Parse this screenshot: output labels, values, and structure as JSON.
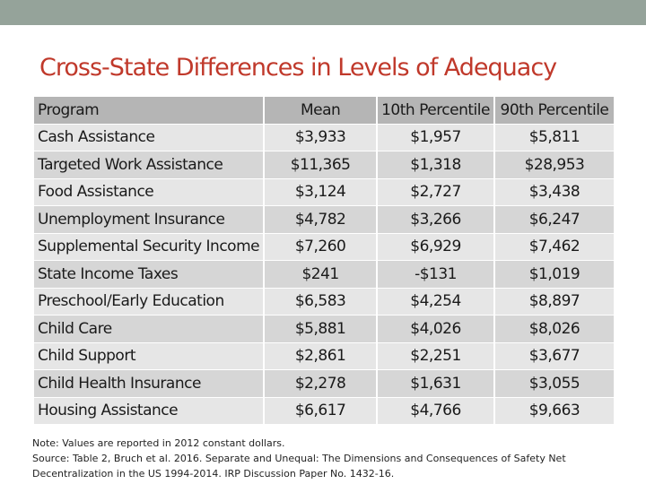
{
  "title": "Cross-State Differences in Levels of Adequacy",
  "table": {
    "header": [
      "Program",
      "Mean",
      "10th Percentile",
      "90th Percentile"
    ],
    "rows": [
      [
        "Cash Assistance",
        "$3,933",
        "$1,957",
        "$5,811"
      ],
      [
        "Targeted Work Assistance",
        "$11,365",
        "$1,318",
        "$28,953"
      ],
      [
        "Food Assistance",
        "$3,124",
        "$2,727",
        "$3,438"
      ],
      [
        "Unemployment Insurance",
        "$4,782",
        "$3,266",
        "$6,247"
      ],
      [
        "Supplemental Security Income",
        "$7,260",
        "$6,929",
        "$7,462"
      ],
      [
        "State Income Taxes",
        "$241",
        "-$131",
        "$1,019"
      ],
      [
        "Preschool/Early Education",
        "$6,583",
        "$4,254",
        "$8,897"
      ],
      [
        "Child Care",
        "$5,881",
        "$4,026",
        "$8,026"
      ],
      [
        "Child Support",
        "$2,861",
        "$2,251",
        "$3,677"
      ],
      [
        "Child Health Insurance",
        "$2,278",
        "$1,631",
        "$3,055"
      ],
      [
        "Housing Assistance",
        "$6,617",
        "$4,766",
        "$9,663"
      ]
    ]
  },
  "notes": [
    "Note: Values are reported in 2012 constant dollars.",
    "Source: Table 2, Bruch et al. 2016. Separate and Unequal: The Dimensions and Consequences of Safety Net",
    "Decentralization in the US 1994-2014. IRP Discussion Paper No. 1432-16."
  ]
}
